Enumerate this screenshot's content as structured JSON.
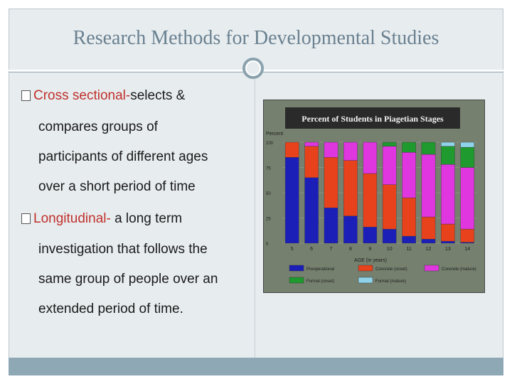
{
  "slide": {
    "title": "Research Methods for Developmental Studies",
    "bullets": [
      {
        "term": "Cross sectional-",
        "lines": [
          "selects &",
          "compares groups of",
          "participants of different ages",
          "over a short period of time"
        ]
      },
      {
        "term": "Longitudinal-",
        "lines": [
          " a long term",
          "investigation that follows the",
          "same group of people over an",
          "extended period of time."
        ]
      }
    ]
  },
  "chart_data": {
    "type": "bar",
    "title": "Percent of Students in Piagetian Stages",
    "ylabel": "Percent",
    "xlabel": "AGE (in years)",
    "ylim": [
      0,
      100
    ],
    "yticks": [
      0,
      25,
      50,
      75,
      100
    ],
    "categories": [
      "5",
      "6",
      "7",
      "8",
      "9",
      "10",
      "11",
      "12",
      "13",
      "14"
    ],
    "stacked": true,
    "series": [
      {
        "name": "Preoperational",
        "color": "#1b1fb8",
        "values": [
          85,
          65,
          35,
          27,
          16,
          14,
          7,
          4,
          2,
          1
        ]
      },
      {
        "name": "Concrete (onset)",
        "color": "#e8421c",
        "values": [
          15,
          31,
          50,
          55,
          53,
          44,
          38,
          22,
          17,
          13
        ]
      },
      {
        "name": "Concrete (mature)",
        "color": "#e036e0",
        "values": [
          0,
          4,
          15,
          18,
          31,
          38,
          45,
          62,
          59,
          61
        ]
      },
      {
        "name": "Formal (onset)",
        "color": "#1f9a2e",
        "values": [
          0,
          0,
          0,
          0,
          0,
          4,
          10,
          12,
          18,
          20
        ]
      },
      {
        "name": "Formal (mature)",
        "color": "#8fd3ea",
        "values": [
          0,
          0,
          0,
          0,
          0,
          0,
          0,
          0,
          4,
          5
        ]
      }
    ],
    "legend_position": "bottom"
  },
  "colors": {
    "frame": "#e7ecef",
    "title": "#6a8190",
    "term": "#c0302b",
    "bottom_bar": "#8ea9b5"
  }
}
